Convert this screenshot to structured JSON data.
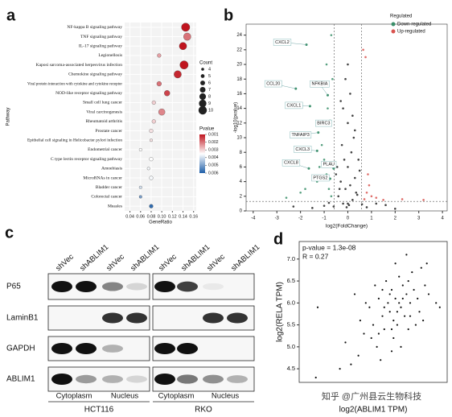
{
  "chart_data": [
    {
      "type": "dot",
      "label": "a",
      "xlabel": "GeneRatio",
      "ylabel": "Pathway",
      "categories": [
        "NF-kappa B signaling pathway",
        "TNF signaling pathway",
        "IL-17 signaling pathway",
        "Legionellosis",
        "Kaposi sarcoma-associated herpesvirus infection",
        "Chemokine signaling pathway",
        "Viral protein interaction with cytokine and cytokine receptor",
        "NOD-like receptor signaling pathway",
        "Small cell lung cancer",
        "Viral carcinogenesis",
        "Rheumatoid arthritis",
        "Prostate cancer",
        "Epithelial cell signaling in Helicobacter pylori infection",
        "Endometrial cancer",
        "C type lectin receptor signaling pathway",
        "Amoebiasis",
        "MicroRNAs in cancer",
        "Bladder cancer",
        "Colorectal cancer",
        "Measles"
      ],
      "values": [
        0.145,
        0.148,
        0.14,
        0.095,
        0.142,
        0.13,
        0.095,
        0.11,
        0.085,
        0.1,
        0.085,
        0.08,
        0.08,
        0.06,
        0.08,
        0.075,
        0.08,
        0.06,
        0.06,
        0.08
      ],
      "sizes": [
        10,
        9,
        9,
        5,
        10,
        9,
        6,
        7,
        5,
        8,
        5,
        5,
        4,
        4,
        5,
        4,
        5,
        4,
        4,
        5
      ],
      "pvalues": [
        0.001,
        0.002,
        0.001,
        0.0025,
        0.001,
        0.0012,
        0.002,
        0.0015,
        0.003,
        0.0022,
        0.003,
        0.0032,
        0.0032,
        0.0035,
        0.0035,
        0.0036,
        0.0036,
        0.004,
        0.005,
        0.0058
      ],
      "xlim": [
        0.03,
        0.165
      ],
      "xticks": [
        0.04,
        0.06,
        0.08,
        {
          "value": 0.1,
          "label": "0.10"
        },
        0.12,
        0.14,
        0.16
      ],
      "size_title": "Count",
      "size_ticks": [
        4,
        5,
        6,
        7,
        8,
        9,
        10
      ],
      "color_title": "Pvalue",
      "color_ticks": [
        0.001,
        0.002,
        0.003,
        0.004,
        0.005,
        0.006
      ],
      "colors": [
        "#c0141e",
        "#ffffff",
        "#1f5fa8"
      ],
      "grid": true
    },
    {
      "type": "scatter",
      "label": "b",
      "xlabel": "log2(FoldChange)",
      "ylabel": "-log10(pvalue)",
      "xlim": [
        -4.3,
        4.2
      ],
      "xticks": [
        -4,
        -3,
        -2,
        -1,
        0,
        1,
        2,
        3,
        4
      ],
      "ylim": [
        0,
        25.5
      ],
      "yticks": [
        0,
        2,
        4,
        6,
        8,
        10,
        12,
        14,
        16,
        18,
        20,
        22,
        24
      ],
      "legend_title": "Regulated",
      "legend": "top-right",
      "thresholds": {
        "x": [
          -0.58,
          0.58
        ],
        "y": 1.3
      },
      "series": [
        {
          "color": "#222222",
          "x": [
            0,
            -0.2,
            0.2,
            -0.4,
            0.4,
            -0.1,
            0.1,
            -0.3,
            0.3,
            -0.5,
            0.5,
            0,
            -0.15,
            0.15,
            -0.25,
            0.25,
            -0.35,
            0.35,
            -0.45,
            0.45,
            -0.05,
            0.05,
            0,
            -0.2,
            0.2,
            -0.6,
            0.6,
            -1.0,
            1.2,
            -1.5,
            1.6,
            0.8,
            -0.8,
            2.0,
            -2.3,
            0.1,
            -0.1,
            0.3,
            -0.3,
            0
          ],
          "values": [
            1,
            1,
            1.5,
            2,
            2.2,
            3,
            3.5,
            4,
            4.5,
            5,
            5.5,
            6,
            7,
            8,
            9,
            10,
            3,
            2.5,
            6,
            7,
            0.5,
            0.8,
            12,
            14,
            13,
            0.6,
            0.9,
            0.7,
            1.0,
            0.4,
            0.8,
            0.5,
            1.1,
            0.3,
            0.6,
            16,
            18,
            11,
            15,
            20
          ]
        },
        {
          "name": "Down-regulated",
          "color": "#3a8f6a",
          "x": [
            -0.7,
            -0.8,
            -0.9,
            -1.0,
            -1.1,
            -1.3,
            -0.75,
            -0.65,
            -2.0,
            -2.6,
            -0.9,
            -1.2,
            -0.7,
            -1.8,
            -0.85
          ],
          "values": [
            2,
            3,
            5,
            7,
            9,
            4,
            12,
            18,
            2.5,
            1.8,
            20,
            6,
            24,
            3,
            14
          ]
        },
        {
          "name": "Up-regulated",
          "color": "#d9534f",
          "x": [
            0.7,
            0.8,
            0.9,
            1.0,
            1.2,
            0.75,
            0.65,
            1.5,
            2.3,
            0.85,
            3.2
          ],
          "values": [
            1.6,
            2.5,
            3.5,
            2,
            1.8,
            21,
            22,
            1.5,
            1.6,
            5,
            1.5
          ]
        }
      ],
      "annotations": [
        {
          "label": "CXCL2",
          "x": -1.75,
          "y": 22.7
        },
        {
          "label": "CCL20",
          "x": -2.2,
          "y": 16.7
        },
        {
          "label": "NFKBIA",
          "x": -0.85,
          "y": 15.8
        },
        {
          "label": "CXCL1",
          "x": -1.6,
          "y": 14.3
        },
        {
          "label": "BIRC3",
          "x": -0.75,
          "y": 12.3
        },
        {
          "label": "TNFAIP3",
          "x": -1.25,
          "y": 10.7
        },
        {
          "label": "CXCL3",
          "x": -1.3,
          "y": 8.2
        },
        {
          "label": "CXCL8",
          "x": -1.65,
          "y": 5.8
        },
        {
          "label": "PLAU",
          "x": -0.6,
          "y": 5.8
        },
        {
          "label": "PTGS2",
          "x": -0.75,
          "y": 4.4
        }
      ]
    },
    {
      "type": "scatter",
      "label": "d",
      "xlabel": "log2(ABLIM1 TPM)",
      "ylabel": "log2(RELA TPM)",
      "annotations": [
        "p-value = 1.3e-08",
        "R = 0.27"
      ],
      "xlim": [
        0,
        8
      ],
      "ylim": [
        4.19,
        7.4
      ],
      "yticks": [
        4.5,
        {
          "value": 5.0,
          "label": "5.0"
        },
        5.5,
        {
          "value": 6.0,
          "label": "6.0"
        },
        6.5,
        {
          "value": 7.0,
          "label": "7.0"
        }
      ],
      "series": [
        {
          "color": "#111111",
          "x": [
            5.2,
            5.5,
            4.8,
            5.0,
            5.8,
            6.0,
            4.5,
            5.3,
            5.6,
            6.2,
            4.9,
            5.1,
            5.7,
            6.4,
            4.3,
            4.6,
            5.4,
            6.1,
            5.9,
            4.0,
            3.8,
            4.2,
            5.0,
            6.5,
            6.8,
            7.0,
            3.5,
            3.2,
            2.8,
            4.4,
            5.5,
            6.3,
            5.2,
            4.7,
            6.6,
            5.8,
            3.0,
            2.5,
            1.0,
            0.9,
            7.4,
            7.6,
            4.1,
            3.6,
            5.3,
            5.6,
            4.9,
            5.4,
            6.0,
            4.6,
            5.1,
            5.9,
            3.9,
            4.5,
            6.7,
            2.2,
            3.3,
            6.9,
            5.0,
            4.3
          ],
          "values": [
            6.1,
            5.9,
            6.0,
            6.3,
            6.2,
            6.0,
            5.7,
            5.5,
            6.4,
            6.3,
            5.8,
            5.2,
            5.7,
            6.1,
            6.1,
            5.4,
            6.6,
            6.7,
            5.4,
            5.5,
            5.9,
            5.0,
            4.9,
            5.8,
            6.4,
            6.2,
            5.3,
            4.8,
            4.6,
            4.7,
            5.0,
            5.5,
            6.9,
            6.5,
            6.8,
            7.1,
            6.2,
            5.1,
            5.9,
            4.3,
            6.0,
            5.9,
            6.4,
            6.0,
            5.8,
            6.1,
            6.2,
            6.0,
            5.7,
            5.9,
            5.6,
            6.5,
            5.2,
            6.3,
            5.6,
            4.5,
            5.6,
            6.9,
            5.4,
            5.3
          ]
        }
      ]
    }
  ],
  "blot": {
    "label": "c",
    "lanes": [
      "shVec",
      "shABLIM1",
      "shVec",
      "shABLIM1",
      "shVec",
      "shABLIM1",
      "shVec",
      "shABLIM1"
    ],
    "proteins": [
      "P65",
      "LaminB1",
      "GAPDH",
      "ABLIM1"
    ],
    "fractions": [
      "Cytoplasm",
      "Nucleus",
      "Cytoplasm",
      "Nucleus"
    ],
    "cell_lines": [
      "HCT116",
      "RKO"
    ]
  },
  "watermark": "知乎 @广州县云生物科技"
}
